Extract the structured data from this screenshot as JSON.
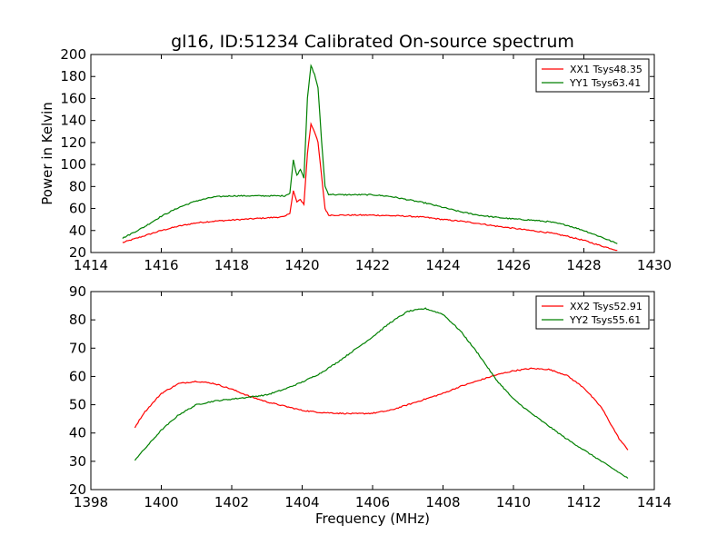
{
  "chart_data": [
    {
      "type": "line",
      "title": "gl16, ID:51234 Calibrated On-source spectrum",
      "xlabel": "",
      "ylabel": "Power in Kelvin",
      "xlim": [
        1414,
        1430
      ],
      "ylim": [
        20,
        200
      ],
      "xticks": [
        1414,
        1416,
        1418,
        1420,
        1422,
        1424,
        1426,
        1428,
        1430
      ],
      "yticks": [
        20,
        40,
        60,
        80,
        100,
        120,
        140,
        160,
        180,
        200
      ],
      "grid": false,
      "legend": "top-right",
      "series": [
        {
          "name": "XX1 Tsys48.35",
          "color": "#ff0000",
          "x": [
            1414.9,
            1415.5,
            1416.0,
            1416.5,
            1417.0,
            1417.5,
            1418.0,
            1418.5,
            1419.0,
            1419.5,
            1419.65,
            1419.75,
            1419.85,
            1419.95,
            1420.05,
            1420.15,
            1420.25,
            1420.35,
            1420.45,
            1420.55,
            1420.65,
            1420.75,
            1421.0,
            1421.5,
            1422.0,
            1422.5,
            1423.0,
            1423.5,
            1424.0,
            1424.5,
            1425.0,
            1425.5,
            1426.0,
            1426.5,
            1427.0,
            1427.5,
            1428.0,
            1428.5,
            1428.95
          ],
          "values": [
            29,
            35,
            40,
            44,
            47,
            48.5,
            49.5,
            50.5,
            51.5,
            52.5,
            56,
            76,
            66,
            68,
            64,
            110,
            137,
            130,
            120,
            90,
            60,
            54,
            54,
            54,
            54,
            53.5,
            53,
            52,
            50,
            48.5,
            46.5,
            44,
            42,
            40,
            38,
            35,
            31,
            26,
            22
          ]
        },
        {
          "name": "YY1 Tsys63.41",
          "color": "#008000",
          "x": [
            1414.9,
            1415.5,
            1416.0,
            1416.5,
            1417.0,
            1417.5,
            1418.0,
            1418.5,
            1419.0,
            1419.5,
            1419.65,
            1419.75,
            1419.85,
            1419.95,
            1420.05,
            1420.15,
            1420.25,
            1420.35,
            1420.45,
            1420.55,
            1420.65,
            1420.75,
            1421.0,
            1421.5,
            1422.0,
            1422.5,
            1423.0,
            1423.5,
            1424.0,
            1424.5,
            1425.0,
            1425.5,
            1426.0,
            1426.5,
            1427.0,
            1427.5,
            1428.0,
            1428.5,
            1428.95
          ],
          "values": [
            33,
            43,
            53,
            61,
            67,
            70.5,
            71.5,
            71.5,
            71.5,
            71.5,
            74,
            104,
            90,
            96,
            88,
            160,
            190,
            182,
            170,
            122,
            80,
            73,
            72.5,
            72.5,
            72.5,
            71,
            68,
            65,
            61,
            57,
            54,
            52,
            50.5,
            49.5,
            48,
            45,
            40,
            34,
            28
          ]
        }
      ]
    },
    {
      "type": "line",
      "title": "",
      "xlabel": "Frequency (MHz)",
      "ylabel": "",
      "xlim": [
        1398,
        1414
      ],
      "ylim": [
        20,
        90
      ],
      "xticks": [
        1398,
        1400,
        1402,
        1404,
        1406,
        1408,
        1410,
        1412,
        1414
      ],
      "yticks": [
        20,
        30,
        40,
        50,
        60,
        70,
        80,
        90
      ],
      "grid": false,
      "legend": "top-right",
      "series": [
        {
          "name": "XX2 Tsys52.91",
          "color": "#ff0000",
          "x": [
            1399.25,
            1399.5,
            1400.0,
            1400.5,
            1401.0,
            1401.5,
            1402.0,
            1402.5,
            1403.0,
            1403.5,
            1404.0,
            1404.5,
            1405.0,
            1405.5,
            1406.0,
            1406.5,
            1407.0,
            1407.5,
            1408.0,
            1408.5,
            1409.0,
            1409.5,
            1410.0,
            1410.5,
            1411.0,
            1411.5,
            1412.0,
            1412.5,
            1413.0,
            1413.25
          ],
          "values": [
            42,
            47,
            54,
            57.5,
            58.3,
            57.5,
            55.5,
            53,
            51,
            49.5,
            48,
            47.3,
            47,
            46.8,
            47,
            48,
            50,
            52,
            54,
            56.5,
            58.5,
            60.5,
            62,
            62.8,
            62.5,
            60.5,
            56,
            49,
            38,
            34
          ]
        },
        {
          "name": "YY2 Tsys55.61",
          "color": "#008000",
          "x": [
            1399.25,
            1399.5,
            1400.0,
            1400.5,
            1401.0,
            1401.5,
            1402.0,
            1402.5,
            1403.0,
            1403.5,
            1404.0,
            1404.5,
            1405.0,
            1405.5,
            1406.0,
            1406.5,
            1407.0,
            1407.5,
            1408.0,
            1408.5,
            1409.0,
            1409.5,
            1410.0,
            1410.5,
            1411.0,
            1411.5,
            1412.0,
            1412.5,
            1413.0,
            1413.25
          ],
          "values": [
            30.5,
            34,
            41,
            46.5,
            50,
            51.3,
            52,
            52.7,
            53.5,
            55.5,
            58,
            61,
            65,
            69.5,
            74,
            79,
            83,
            84,
            82,
            76,
            68,
            59,
            52,
            47,
            42.5,
            38,
            34,
            30,
            26,
            24
          ]
        }
      ]
    }
  ]
}
